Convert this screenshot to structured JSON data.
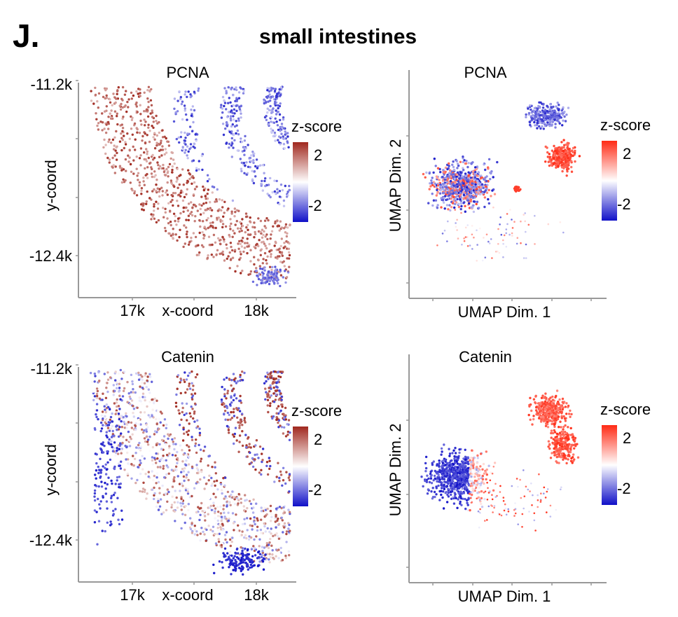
{
  "panel_letter": "J.",
  "figure_title": "small intestines",
  "colors": {
    "low": "#1010c8",
    "mid": "#ffffff",
    "high_spatial": "#a0281e",
    "high_umap": "#ff2a14",
    "axis": "#999999"
  },
  "chart_data": [
    {
      "type": "scatter",
      "title": "PCNA",
      "xlabel": "x-coord",
      "ylabel": "y-coord",
      "x_ticks": [
        "17k",
        "18k"
      ],
      "y_ticks": [
        "-11.2k",
        "-12.4k"
      ],
      "colorbar": {
        "label": "z-score",
        "ticks": [
          "2",
          "-2"
        ],
        "range": [
          -2,
          2
        ],
        "palette": "spatial"
      }
    },
    {
      "type": "scatter",
      "title": "PCNA",
      "xlabel": "UMAP Dim. 1",
      "ylabel": "UMAP Dim. 2",
      "colorbar": {
        "label": "z-score",
        "ticks": [
          "2",
          "-2"
        ],
        "range": [
          -2,
          2
        ],
        "palette": "umap"
      }
    },
    {
      "type": "scatter",
      "title": "Catenin",
      "xlabel": "x-coord",
      "ylabel": "y-coord",
      "x_ticks": [
        "17k",
        "18k"
      ],
      "y_ticks": [
        "-11.2k",
        "-12.4k"
      ],
      "colorbar": {
        "label": "z-score",
        "ticks": [
          "2",
          "-2"
        ],
        "range": [
          -2,
          2
        ],
        "palette": "spatial"
      }
    },
    {
      "type": "scatter",
      "title": "Catenin",
      "xlabel": "UMAP Dim. 1",
      "ylabel": "UMAP Dim. 2",
      "colorbar": {
        "label": "z-score",
        "ticks": [
          "2",
          "-2"
        ],
        "range": [
          -2,
          2
        ],
        "palette": "umap"
      }
    }
  ]
}
